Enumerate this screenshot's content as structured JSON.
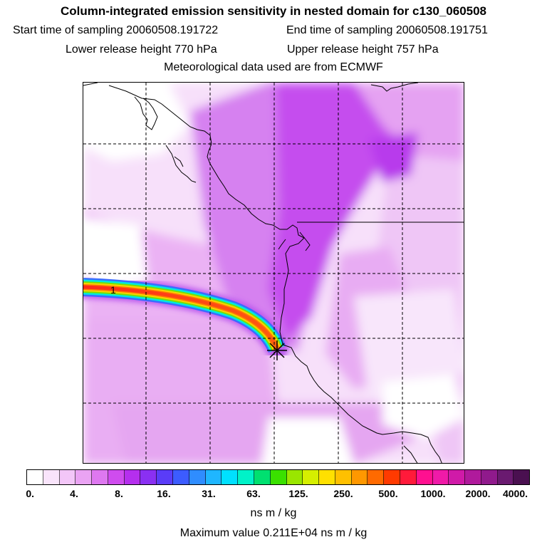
{
  "header": {
    "title": "Column-integrated emission sensitivity in nested domain for c130_060508",
    "start_label": "Start time of sampling 20060508.191722",
    "end_label": "End time of sampling 20060508.191751",
    "lower_label": "Lower release height  770 hPa",
    "upper_label": "Upper release height  757 hPa",
    "met_label": "Meteorological data used are from ECMWF"
  },
  "map": {
    "plume_label": "1",
    "release_marker": "release-point",
    "colors": {
      "background_low": "#f6dcf9",
      "background_mid": "#e9a9f2",
      "background_high": "#cb4bec",
      "coast": "#000000",
      "grid": "#000000"
    }
  },
  "colorbar": {
    "ticks": [
      "0.",
      "4.",
      "8.",
      "16.",
      "31.",
      "63.",
      "125.",
      "250.",
      "500.",
      "1000.",
      "2000.",
      "4000."
    ],
    "colors": [
      "#ffffff",
      "#f9e4fb",
      "#f3c6f8",
      "#eaa3f3",
      "#de78f0",
      "#cf4cee",
      "#b52fee",
      "#8a30f2",
      "#5a3cf8",
      "#3c5cff",
      "#2f8dff",
      "#1fb6ff",
      "#00e0ff",
      "#00f2c8",
      "#00e070",
      "#3ae000",
      "#9ae600",
      "#d6ef00",
      "#ffe000",
      "#ffc000",
      "#ff9800",
      "#ff6a00",
      "#ff3a00",
      "#ff1a3a",
      "#ff1090",
      "#f01aa8",
      "#d01aa8",
      "#b01a9c",
      "#901a8c",
      "#6a1a70",
      "#4a1050"
    ],
    "units": "ns m / kg",
    "max_value": "Maximum value  0.211E+04 ns m / kg"
  }
}
